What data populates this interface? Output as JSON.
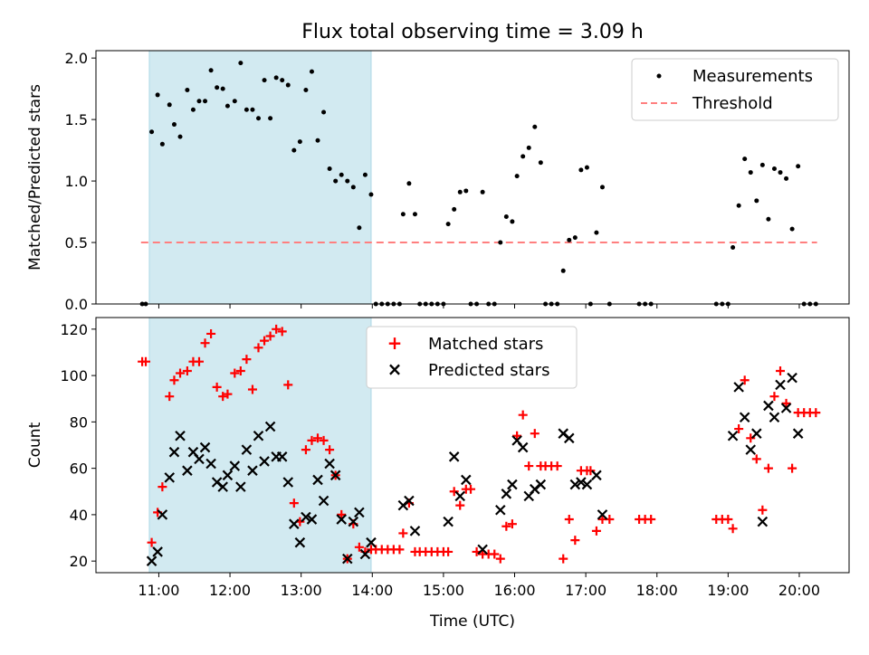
{
  "title": "Flux total observing time = 3.09 h",
  "colors": {
    "shade": "#add8e6",
    "measurement": "#000000",
    "threshold": "#ff7f7f",
    "matched": "#ff0000",
    "predicted": "#000000"
  },
  "chart_data": [
    {
      "type": "scatter",
      "ylabel": "Matched/Predicted stars",
      "ylim": [
        0,
        2.06
      ],
      "yticks": [
        0.0,
        0.5,
        1.0,
        1.5,
        2.0
      ],
      "ytick_labels": [
        "0.0",
        "0.5",
        "1.0",
        "1.5",
        "2.0"
      ],
      "shaded_interval": [
        "10:52",
        "13:59"
      ],
      "legend": [
        "Measurements",
        "Threshold"
      ],
      "legend_position": "upper right",
      "threshold": {
        "value": 0.5,
        "from": "10:45",
        "to": "20:15"
      },
      "measurements": [
        [
          "10:46",
          0.0
        ],
        [
          "10:49",
          0.0
        ],
        [
          "10:54",
          1.4
        ],
        [
          "10:59",
          1.7
        ],
        [
          "11:03",
          1.3
        ],
        [
          "11:09",
          1.62
        ],
        [
          "11:13",
          1.46
        ],
        [
          "11:18",
          1.36
        ],
        [
          "11:24",
          1.74
        ],
        [
          "11:29",
          1.58
        ],
        [
          "11:34",
          1.65
        ],
        [
          "11:39",
          1.65
        ],
        [
          "11:44",
          1.9
        ],
        [
          "11:49",
          1.76
        ],
        [
          "11:54",
          1.75
        ],
        [
          "11:58",
          1.61
        ],
        [
          "12:04",
          1.65
        ],
        [
          "12:09",
          1.96
        ],
        [
          "12:14",
          1.58
        ],
        [
          "12:19",
          1.58
        ],
        [
          "12:24",
          1.51
        ],
        [
          "12:29",
          1.82
        ],
        [
          "12:34",
          1.51
        ],
        [
          "12:39",
          1.84
        ],
        [
          "12:44",
          1.82
        ],
        [
          "12:49",
          1.78
        ],
        [
          "12:54",
          1.25
        ],
        [
          "12:59",
          1.32
        ],
        [
          "13:04",
          1.74
        ],
        [
          "13:09",
          1.89
        ],
        [
          "13:14",
          1.33
        ],
        [
          "13:19",
          1.56
        ],
        [
          "13:24",
          1.1
        ],
        [
          "13:29",
          1.0
        ],
        [
          "13:34",
          1.05
        ],
        [
          "13:39",
          1.0
        ],
        [
          "13:44",
          0.95
        ],
        [
          "13:49",
          0.62
        ],
        [
          "13:54",
          1.05
        ],
        [
          "13:59",
          0.89
        ],
        [
          "14:03",
          0.0
        ],
        [
          "14:08",
          0.0
        ],
        [
          "14:13",
          0.0
        ],
        [
          "14:18",
          0.0
        ],
        [
          "14:23",
          0.0
        ],
        [
          "14:26",
          0.73
        ],
        [
          "14:31",
          0.98
        ],
        [
          "14:36",
          0.73
        ],
        [
          "14:40",
          0.0
        ],
        [
          "14:45",
          0.0
        ],
        [
          "14:50",
          0.0
        ],
        [
          "14:55",
          0.0
        ],
        [
          "15:00",
          0.0
        ],
        [
          "15:04",
          0.65
        ],
        [
          "15:09",
          0.77
        ],
        [
          "15:14",
          0.91
        ],
        [
          "15:19",
          0.92
        ],
        [
          "15:23",
          0.0
        ],
        [
          "15:28",
          0.0
        ],
        [
          "15:33",
          0.91
        ],
        [
          "15:38",
          0.0
        ],
        [
          "15:43",
          0.0
        ],
        [
          "15:48",
          0.5
        ],
        [
          "15:53",
          0.71
        ],
        [
          "15:58",
          0.67
        ],
        [
          "16:02",
          1.04
        ],
        [
          "16:07",
          1.2
        ],
        [
          "16:12",
          1.27
        ],
        [
          "16:17",
          1.44
        ],
        [
          "16:22",
          1.15
        ],
        [
          "16:26",
          0.0
        ],
        [
          "16:31",
          0.0
        ],
        [
          "16:36",
          0.0
        ],
        [
          "16:41",
          0.27
        ],
        [
          "16:46",
          0.52
        ],
        [
          "16:51",
          0.54
        ],
        [
          "16:56",
          1.09
        ],
        [
          "17:01",
          1.11
        ],
        [
          "17:04",
          0.0
        ],
        [
          "17:09",
          0.58
        ],
        [
          "17:14",
          0.95
        ],
        [
          "17:20",
          0.0
        ],
        [
          "17:45",
          0.0
        ],
        [
          "17:50",
          0.0
        ],
        [
          "17:55",
          0.0
        ],
        [
          "18:50",
          0.0
        ],
        [
          "18:55",
          0.0
        ],
        [
          "19:00",
          0.0
        ],
        [
          "19:04",
          0.46
        ],
        [
          "19:09",
          0.8
        ],
        [
          "19:14",
          1.18
        ],
        [
          "19:19",
          1.07
        ],
        [
          "19:24",
          0.84
        ],
        [
          "19:29",
          1.13
        ],
        [
          "19:34",
          0.69
        ],
        [
          "19:39",
          1.1
        ],
        [
          "19:44",
          1.07
        ],
        [
          "19:49",
          1.02
        ],
        [
          "19:54",
          0.61
        ],
        [
          "19:59",
          1.12
        ],
        [
          "20:04",
          0.0
        ],
        [
          "20:09",
          0.0
        ],
        [
          "20:14",
          0.0
        ]
      ]
    },
    {
      "type": "scatter",
      "xlabel": "Time (UTC)",
      "ylabel": "Count",
      "ylim": [
        15,
        125
      ],
      "yticks": [
        20,
        40,
        60,
        80,
        100,
        120
      ],
      "xlim": [
        "10:07",
        "20:42"
      ],
      "xticks": [
        "11:00",
        "12:00",
        "13:00",
        "14:00",
        "15:00",
        "16:00",
        "17:00",
        "18:00",
        "19:00",
        "20:00"
      ],
      "shaded_interval": [
        "10:52",
        "13:59"
      ],
      "legend": [
        "Matched stars",
        "Predicted stars"
      ],
      "legend_position": "upper center",
      "series": [
        {
          "name": "Matched stars",
          "points": [
            [
              "10:46",
              106
            ],
            [
              "10:49",
              106
            ],
            [
              "10:54",
              28
            ],
            [
              "10:59",
              41
            ],
            [
              "11:03",
              52
            ],
            [
              "11:09",
              91
            ],
            [
              "11:13",
              98
            ],
            [
              "11:18",
              101
            ],
            [
              "11:24",
              102
            ],
            [
              "11:29",
              106
            ],
            [
              "11:34",
              106
            ],
            [
              "11:39",
              114
            ],
            [
              "11:44",
              118
            ],
            [
              "11:49",
              95
            ],
            [
              "11:54",
              91
            ],
            [
              "11:58",
              92
            ],
            [
              "12:04",
              101
            ],
            [
              "12:09",
              102
            ],
            [
              "12:14",
              107
            ],
            [
              "12:19",
              94
            ],
            [
              "12:24",
              112
            ],
            [
              "12:29",
              115
            ],
            [
              "12:34",
              117
            ],
            [
              "12:39",
              120
            ],
            [
              "12:44",
              119
            ],
            [
              "12:49",
              96
            ],
            [
              "12:54",
              45
            ],
            [
              "12:59",
              37
            ],
            [
              "13:04",
              68
            ],
            [
              "13:09",
              72
            ],
            [
              "13:14",
              73
            ],
            [
              "13:19",
              72
            ],
            [
              "13:24",
              68
            ],
            [
              "13:29",
              57
            ],
            [
              "13:34",
              40
            ],
            [
              "13:39",
              21
            ],
            [
              "13:44",
              36
            ],
            [
              "13:49",
              26
            ],
            [
              "13:54",
              24
            ],
            [
              "13:59",
              25
            ],
            [
              "14:03",
              25
            ],
            [
              "14:08",
              25
            ],
            [
              "14:13",
              25
            ],
            [
              "14:18",
              25
            ],
            [
              "14:23",
              25
            ],
            [
              "14:26",
              32
            ],
            [
              "14:31",
              45
            ],
            [
              "14:36",
              24
            ],
            [
              "14:40",
              24
            ],
            [
              "14:45",
              24
            ],
            [
              "14:50",
              24
            ],
            [
              "14:55",
              24
            ],
            [
              "15:00",
              24
            ],
            [
              "15:04",
              24
            ],
            [
              "15:09",
              50
            ],
            [
              "15:14",
              44
            ],
            [
              "15:19",
              51
            ],
            [
              "15:23",
              51
            ],
            [
              "15:28",
              24
            ],
            [
              "15:33",
              23
            ],
            [
              "15:38",
              23
            ],
            [
              "15:43",
              23
            ],
            [
              "15:48",
              21
            ],
            [
              "15:53",
              35
            ],
            [
              "15:58",
              36
            ],
            [
              "16:02",
              74
            ],
            [
              "16:07",
              83
            ],
            [
              "16:12",
              61
            ],
            [
              "16:17",
              75
            ],
            [
              "16:22",
              61
            ],
            [
              "16:26",
              61
            ],
            [
              "16:31",
              61
            ],
            [
              "16:36",
              61
            ],
            [
              "16:41",
              21
            ],
            [
              "16:46",
              38
            ],
            [
              "16:51",
              29
            ],
            [
              "16:56",
              59
            ],
            [
              "17:01",
              59
            ],
            [
              "17:04",
              59
            ],
            [
              "17:09",
              33
            ],
            [
              "17:14",
              38
            ],
            [
              "17:20",
              38
            ],
            [
              "17:45",
              38
            ],
            [
              "17:50",
              38
            ],
            [
              "17:55",
              38
            ],
            [
              "18:50",
              38
            ],
            [
              "18:55",
              38
            ],
            [
              "19:00",
              38
            ],
            [
              "19:04",
              34
            ],
            [
              "19:09",
              77
            ],
            [
              "19:14",
              98
            ],
            [
              "19:19",
              73
            ],
            [
              "19:24",
              64
            ],
            [
              "19:29",
              42
            ],
            [
              "19:34",
              60
            ],
            [
              "19:39",
              91
            ],
            [
              "19:44",
              102
            ],
            [
              "19:49",
              88
            ],
            [
              "19:54",
              60
            ],
            [
              "19:59",
              84
            ],
            [
              "20:04",
              84
            ],
            [
              "20:09",
              84
            ],
            [
              "20:14",
              84
            ]
          ]
        },
        {
          "name": "Predicted stars",
          "points": [
            [
              "10:54",
              20
            ],
            [
              "10:59",
              24
            ],
            [
              "11:03",
              40
            ],
            [
              "11:09",
              56
            ],
            [
              "11:13",
              67
            ],
            [
              "11:18",
              74
            ],
            [
              "11:24",
              59
            ],
            [
              "11:29",
              67
            ],
            [
              "11:34",
              64
            ],
            [
              "11:39",
              69
            ],
            [
              "11:44",
              62
            ],
            [
              "11:49",
              54
            ],
            [
              "11:54",
              52
            ],
            [
              "11:58",
              57
            ],
            [
              "12:04",
              61
            ],
            [
              "12:09",
              52
            ],
            [
              "12:14",
              68
            ],
            [
              "12:19",
              59
            ],
            [
              "12:24",
              74
            ],
            [
              "12:29",
              63
            ],
            [
              "12:34",
              78
            ],
            [
              "12:39",
              65
            ],
            [
              "12:44",
              65
            ],
            [
              "12:49",
              54
            ],
            [
              "12:54",
              36
            ],
            [
              "12:59",
              28
            ],
            [
              "13:04",
              39
            ],
            [
              "13:09",
              38
            ],
            [
              "13:14",
              55
            ],
            [
              "13:19",
              46
            ],
            [
              "13:24",
              62
            ],
            [
              "13:29",
              57
            ],
            [
              "13:34",
              38
            ],
            [
              "13:39",
              21
            ],
            [
              "13:44",
              37
            ],
            [
              "13:49",
              41
            ],
            [
              "13:54",
              23
            ],
            [
              "13:59",
              28
            ],
            [
              "14:26",
              44
            ],
            [
              "14:31",
              46
            ],
            [
              "14:36",
              33
            ],
            [
              "15:04",
              37
            ],
            [
              "15:09",
              65
            ],
            [
              "15:14",
              48
            ],
            [
              "15:19",
              55
            ],
            [
              "15:33",
              25
            ],
            [
              "15:48",
              42
            ],
            [
              "15:53",
              49
            ],
            [
              "15:58",
              53
            ],
            [
              "16:02",
              72
            ],
            [
              "16:07",
              69
            ],
            [
              "16:12",
              48
            ],
            [
              "16:17",
              51
            ],
            [
              "16:22",
              53
            ],
            [
              "16:41",
              75
            ],
            [
              "16:46",
              73
            ],
            [
              "16:51",
              53
            ],
            [
              "16:56",
              54
            ],
            [
              "17:01",
              53
            ],
            [
              "17:09",
              57
            ],
            [
              "17:14",
              40
            ],
            [
              "19:04",
              74
            ],
            [
              "19:09",
              95
            ],
            [
              "19:14",
              82
            ],
            [
              "19:19",
              68
            ],
            [
              "19:24",
              75
            ],
            [
              "19:29",
              37
            ],
            [
              "19:34",
              87
            ],
            [
              "19:39",
              82
            ],
            [
              "19:44",
              96
            ],
            [
              "19:49",
              86
            ],
            [
              "19:54",
              99
            ],
            [
              "19:59",
              75
            ]
          ]
        }
      ]
    }
  ]
}
